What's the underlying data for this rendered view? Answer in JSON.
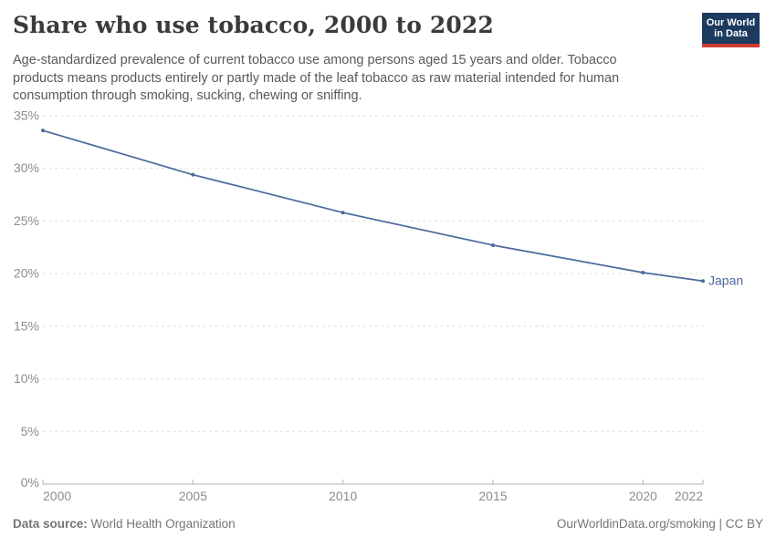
{
  "chart_data": {
    "type": "line",
    "title": "Share who use tobacco, 2000 to 2022",
    "subtitle": "Age-standardized prevalence of current tobacco use among persons aged 15 years and older. Tobacco products means products entirely or partly made of the leaf tobacco as raw material intended for human consumption through smoking, sucking, chewing or sniffing.",
    "x": [
      2000,
      2005,
      2010,
      2015,
      2020,
      2022
    ],
    "series": [
      {
        "name": "Japan",
        "values": [
          33.6,
          29.4,
          25.8,
          22.7,
          20.1,
          19.3
        ]
      }
    ],
    "xlim": [
      2000,
      2022
    ],
    "ylim": [
      0,
      35
    ],
    "x_ticks": [
      "2000",
      "2005",
      "2010",
      "2015",
      "2020",
      "2022"
    ],
    "y_ticks": [
      0,
      5,
      10,
      15,
      20,
      25,
      30,
      35
    ],
    "y_tick_suffix": "%",
    "grid": "horizontal-dashed",
    "legend_position": "end-of-line-label",
    "colors": {
      "line": "#4c6a9c",
      "entity_label": "#4c6a9c",
      "grid": "#dedede",
      "axis": "#b3b3b3",
      "tick_label": "#8c8c8c"
    }
  },
  "header": {
    "logo": {
      "line1": "Our World",
      "line2": "in Data",
      "bg_color": "#1d3a5f",
      "bar_color": "#cf3a31"
    }
  },
  "footer": {
    "source_label": "Data source:",
    "source_value": " World Health Organization",
    "credit": "OurWorldinData.org/smoking | CC BY"
  }
}
